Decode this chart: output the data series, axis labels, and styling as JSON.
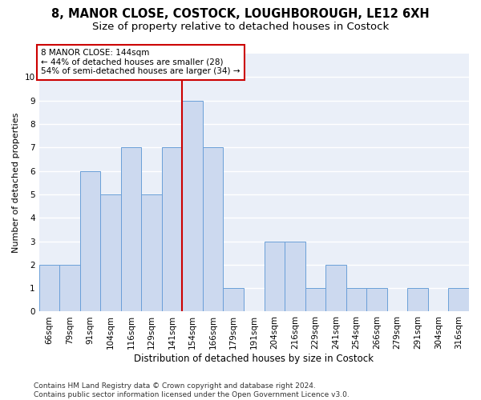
{
  "title1": "8, MANOR CLOSE, COSTOCK, LOUGHBOROUGH, LE12 6XH",
  "title2": "Size of property relative to detached houses in Costock",
  "xlabel": "Distribution of detached houses by size in Costock",
  "ylabel": "Number of detached properties",
  "categories": [
    "66sqm",
    "79sqm",
    "91sqm",
    "104sqm",
    "116sqm",
    "129sqm",
    "141sqm",
    "154sqm",
    "166sqm",
    "179sqm",
    "191sqm",
    "204sqm",
    "216sqm",
    "229sqm",
    "241sqm",
    "254sqm",
    "266sqm",
    "279sqm",
    "291sqm",
    "304sqm",
    "316sqm"
  ],
  "values": [
    2,
    2,
    6,
    5,
    7,
    5,
    7,
    9,
    7,
    1,
    0,
    3,
    3,
    1,
    2,
    1,
    1,
    0,
    1,
    0,
    1
  ],
  "bar_color": "#ccd9ef",
  "bar_edge_color": "#6a9fd8",
  "vline_x": 6.5,
  "vline_color": "#cc0000",
  "annotation_text": "8 MANOR CLOSE: 144sqm\n← 44% of detached houses are smaller (28)\n54% of semi-detached houses are larger (34) →",
  "annotation_box_color": "#ffffff",
  "annotation_box_edge": "#cc0000",
  "ylim": [
    0,
    11
  ],
  "yticks": [
    0,
    1,
    2,
    3,
    4,
    5,
    6,
    7,
    8,
    9,
    10,
    11
  ],
  "footer": "Contains HM Land Registry data © Crown copyright and database right 2024.\nContains public sector information licensed under the Open Government Licence v3.0.",
  "bg_color": "#eaeff8",
  "grid_color": "#ffffff",
  "fig_bg_color": "#ffffff",
  "title1_fontsize": 10.5,
  "title2_fontsize": 9.5,
  "xlabel_fontsize": 8.5,
  "ylabel_fontsize": 8,
  "tick_fontsize": 7.5,
  "footer_fontsize": 6.5,
  "annot_fontsize": 7.5
}
